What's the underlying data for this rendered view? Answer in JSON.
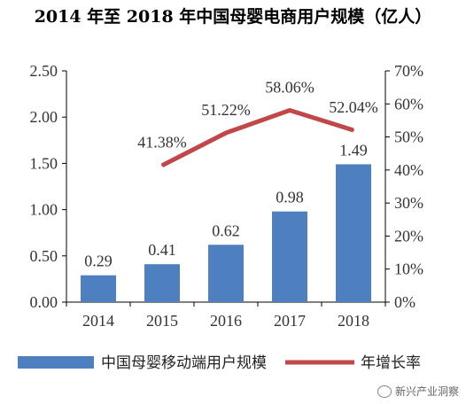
{
  "chart_data": {
    "type": "bar+line",
    "title": "2014 年至 2018 年中国母婴电商用户规模（亿人）",
    "categories": [
      "2014",
      "2015",
      "2016",
      "2017",
      "2018"
    ],
    "series": [
      {
        "name": "中国母婴移动端用户规模",
        "type": "bar",
        "axis": "left",
        "values": [
          0.29,
          0.41,
          0.62,
          0.98,
          1.49
        ],
        "labels": [
          "0.29",
          "0.41",
          "0.62",
          "0.98",
          "1.49"
        ]
      },
      {
        "name": "年增长率",
        "type": "line",
        "axis": "right",
        "values": [
          null,
          41.38,
          51.22,
          58.06,
          52.04
        ],
        "labels": [
          "",
          "41.38%",
          "51.22%",
          "58.06%",
          "52.04%"
        ]
      }
    ],
    "y_left": {
      "ylim": [
        0,
        2.5
      ],
      "ticks": [
        0,
        0.5,
        1.0,
        1.5,
        2.0,
        2.5
      ],
      "tick_labels": [
        "0.00",
        "0.50",
        "1.00",
        "1.50",
        "2.00",
        "2.50"
      ]
    },
    "y_right": {
      "ylim": [
        0,
        70
      ],
      "ticks": [
        0,
        10,
        20,
        30,
        40,
        50,
        60,
        70
      ],
      "tick_labels": [
        "0%",
        "10%",
        "20%",
        "30%",
        "40%",
        "50%",
        "60%",
        "70%"
      ]
    },
    "grid": false,
    "legend": "bottom"
  },
  "colors": {
    "bar": "#4e7fbf",
    "line": "#c0474a",
    "axis": "#000000"
  },
  "watermark": {
    "text": "新兴产业洞察",
    "icon": "wechat-icon"
  }
}
